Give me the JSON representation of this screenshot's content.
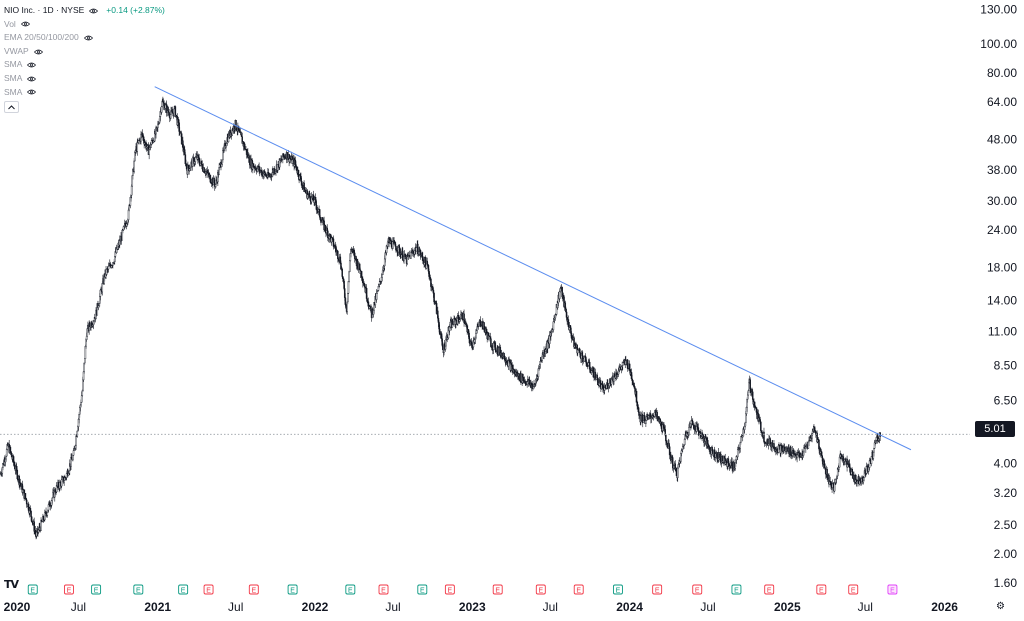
{
  "header": {
    "symbol": "NIO Inc. · 1D · NYSE",
    "change": "+0.14 (+2.87%)",
    "indicators": [
      "Vol",
      "EMA 20/50/100/200",
      "VWAP",
      "SMA",
      "SMA",
      "SMA"
    ]
  },
  "price_badge": "5.01",
  "colors": {
    "candle": "#131722",
    "trendline": "#5b8def",
    "earnings_green": "#089981",
    "earnings_red": "#f23645",
    "earnings_upcoming": "#e040fb",
    "badge_bg": "#131722",
    "change_text": "#089981"
  },
  "icons": {
    "logo": "tradingview-logo-icon",
    "settings": "settings-gear-icon",
    "visibility": "eye-icon"
  },
  "chart_data": {
    "type": "candlestick",
    "scale": "log",
    "grid": false,
    "x_range": [
      "2020-01-01",
      "2026-03-01"
    ],
    "y_range": [
      1.45,
      140
    ],
    "y_ticks": [
      1.6,
      2.0,
      2.5,
      3.2,
      4.0,
      5.01,
      6.5,
      8.5,
      11.0,
      14.0,
      18.0,
      24.0,
      30.0,
      38.0,
      48.0,
      64.0,
      80.0,
      100.0,
      130.0
    ],
    "y_tick_labels": [
      "1.60",
      "2.00",
      "2.50",
      "3.20",
      "4.00",
      "5.01",
      "6.50",
      "8.50",
      "11.00",
      "14.00",
      "18.00",
      "24.00",
      "30.00",
      "38.00",
      "48.00",
      "64.00",
      "80.00",
      "100.00",
      "130.00"
    ],
    "x_ticks": [
      {
        "date": "2020-01-01",
        "label": "2020",
        "bold": true
      },
      {
        "date": "2020-07-01",
        "label": "Jul",
        "bold": false
      },
      {
        "date": "2021-01-01",
        "label": "2021",
        "bold": true
      },
      {
        "date": "2021-07-01",
        "label": "Jul",
        "bold": false
      },
      {
        "date": "2022-01-01",
        "label": "2022",
        "bold": true
      },
      {
        "date": "2022-07-01",
        "label": "Jul",
        "bold": false
      },
      {
        "date": "2023-01-01",
        "label": "2023",
        "bold": true
      },
      {
        "date": "2023-07-01",
        "label": "Jul",
        "bold": false
      },
      {
        "date": "2024-01-01",
        "label": "2024",
        "bold": true
      },
      {
        "date": "2024-07-01",
        "label": "Jul",
        "bold": false
      },
      {
        "date": "2025-01-01",
        "label": "2025",
        "bold": true
      },
      {
        "date": "2025-07-01",
        "label": "Jul",
        "bold": false
      },
      {
        "date": "2026-01-01",
        "label": "2026",
        "bold": true
      }
    ],
    "last_price": 5.01,
    "trendline": {
      "start": {
        "date": "2020-12-25",
        "value": 72
      },
      "end": {
        "date": "2025-10-15",
        "value": 4.45
      }
    },
    "price_path": [
      [
        "2020-01-02",
        3.7
      ],
      [
        "2020-01-20",
        4.6
      ],
      [
        "2020-02-15",
        3.5
      ],
      [
        "2020-03-10",
        2.8
      ],
      [
        "2020-03-25",
        2.3
      ],
      [
        "2020-04-15",
        2.7
      ],
      [
        "2020-05-10",
        3.3
      ],
      [
        "2020-06-01",
        3.6
      ],
      [
        "2020-06-20",
        4.3
      ],
      [
        "2020-07-10",
        7.0
      ],
      [
        "2020-07-20",
        11.0
      ],
      [
        "2020-08-10",
        12.5
      ],
      [
        "2020-08-31",
        17.0
      ],
      [
        "2020-09-20",
        19.0
      ],
      [
        "2020-10-10",
        23.0
      ],
      [
        "2020-10-25",
        27.0
      ],
      [
        "2020-11-10",
        44.0
      ],
      [
        "2020-11-25",
        50.0
      ],
      [
        "2020-12-10",
        44.0
      ],
      [
        "2020-12-31",
        52.0
      ],
      [
        "2021-01-11",
        64.0
      ],
      [
        "2021-01-31",
        58.0
      ],
      [
        "2021-02-10",
        60.0
      ],
      [
        "2021-02-28",
        46.0
      ],
      [
        "2021-03-10",
        38.0
      ],
      [
        "2021-04-01",
        42.0
      ],
      [
        "2021-05-01",
        36.0
      ],
      [
        "2021-05-15",
        34.0
      ],
      [
        "2021-06-10",
        48.0
      ],
      [
        "2021-06-30",
        54.0
      ],
      [
        "2021-07-15",
        48.0
      ],
      [
        "2021-08-05",
        40.0
      ],
      [
        "2021-08-25",
        38.0
      ],
      [
        "2021-09-15",
        36.0
      ],
      [
        "2021-10-10",
        40.0
      ],
      [
        "2021-10-25",
        43.0
      ],
      [
        "2021-11-15",
        40.0
      ],
      [
        "2021-12-10",
        32.0
      ],
      [
        "2021-12-31",
        30.0
      ],
      [
        "2022-01-20",
        25.0
      ],
      [
        "2022-02-10",
        22.0
      ],
      [
        "2022-03-01",
        19.0
      ],
      [
        "2022-03-15",
        13.0
      ],
      [
        "2022-03-25",
        21.0
      ],
      [
        "2022-04-20",
        17.0
      ],
      [
        "2022-05-12",
        12.5
      ],
      [
        "2022-06-01",
        16.0
      ],
      [
        "2022-06-20",
        22.0
      ],
      [
        "2022-07-10",
        21.0
      ],
      [
        "2022-08-01",
        19.0
      ],
      [
        "2022-08-25",
        21.0
      ],
      [
        "2022-09-20",
        18.0
      ],
      [
        "2022-10-10",
        13.0
      ],
      [
        "2022-10-25",
        9.5
      ],
      [
        "2022-11-10",
        11.5
      ],
      [
        "2022-12-10",
        12.5
      ],
      [
        "2022-12-30",
        9.8
      ],
      [
        "2023-01-20",
        12.0
      ],
      [
        "2023-02-15",
        10.0
      ],
      [
        "2023-03-15",
        9.2
      ],
      [
        "2023-04-10",
        8.0
      ],
      [
        "2023-05-01",
        7.6
      ],
      [
        "2023-05-25",
        7.2
      ],
      [
        "2023-06-10",
        9.0
      ],
      [
        "2023-07-01",
        10.5
      ],
      [
        "2023-07-25",
        15.5
      ],
      [
        "2023-08-10",
        12.0
      ],
      [
        "2023-08-25",
        10.0
      ],
      [
        "2023-09-15",
        9.0
      ],
      [
        "2023-10-10",
        8.0
      ],
      [
        "2023-11-01",
        7.0
      ],
      [
        "2023-11-25",
        7.8
      ],
      [
        "2023-12-25",
        8.8
      ],
      [
        "2024-01-10",
        7.5
      ],
      [
        "2024-01-25",
        5.7
      ],
      [
        "2024-02-10",
        5.6
      ],
      [
        "2024-02-28",
        5.9
      ],
      [
        "2024-03-20",
        5.2
      ],
      [
        "2024-04-10",
        4.0
      ],
      [
        "2024-04-20",
        3.7
      ],
      [
        "2024-05-10",
        5.0
      ],
      [
        "2024-05-25",
        5.5
      ],
      [
        "2024-06-15",
        5.0
      ],
      [
        "2024-07-10",
        4.4
      ],
      [
        "2024-08-05",
        4.1
      ],
      [
        "2024-09-01",
        3.9
      ],
      [
        "2024-09-25",
        5.5
      ],
      [
        "2024-10-05",
        7.5
      ],
      [
        "2024-10-20",
        6.0
      ],
      [
        "2024-11-10",
        4.8
      ],
      [
        "2024-12-10",
        4.5
      ],
      [
        "2025-01-10",
        4.4
      ],
      [
        "2025-01-31",
        4.2
      ],
      [
        "2025-02-20",
        4.7
      ],
      [
        "2025-03-05",
        5.3
      ],
      [
        "2025-03-20",
        4.3
      ],
      [
        "2025-04-08",
        3.5
      ],
      [
        "2025-04-20",
        3.3
      ],
      [
        "2025-05-05",
        4.3
      ],
      [
        "2025-05-20",
        4.0
      ],
      [
        "2025-06-10",
        3.5
      ],
      [
        "2025-06-25",
        3.6
      ],
      [
        "2025-07-15",
        4.1
      ],
      [
        "2025-07-25",
        4.8
      ],
      [
        "2025-08-05",
        5.01
      ]
    ],
    "earnings": [
      {
        "date": "2020-03-17",
        "color": "green",
        "label": "E"
      },
      {
        "date": "2020-06-09",
        "color": "red",
        "label": "E"
      },
      {
        "date": "2020-08-11",
        "color": "green",
        "label": "E"
      },
      {
        "date": "2020-11-17",
        "color": "green",
        "label": "E"
      },
      {
        "date": "2021-03-01",
        "color": "green",
        "label": "E"
      },
      {
        "date": "2021-04-29",
        "color": "red",
        "label": "E"
      },
      {
        "date": "2021-08-12",
        "color": "red",
        "label": "E"
      },
      {
        "date": "2021-11-10",
        "color": "green",
        "label": "E"
      },
      {
        "date": "2022-03-24",
        "color": "green",
        "label": "E"
      },
      {
        "date": "2022-06-09",
        "color": "red",
        "label": "E"
      },
      {
        "date": "2022-09-07",
        "color": "green",
        "label": "E"
      },
      {
        "date": "2022-11-10",
        "color": "red",
        "label": "E"
      },
      {
        "date": "2023-03-01",
        "color": "red",
        "label": "E"
      },
      {
        "date": "2023-06-09",
        "color": "red",
        "label": "E"
      },
      {
        "date": "2023-09-05",
        "color": "red",
        "label": "E"
      },
      {
        "date": "2023-12-05",
        "color": "green",
        "label": "E"
      },
      {
        "date": "2024-03-05",
        "color": "red",
        "label": "E"
      },
      {
        "date": "2024-06-06",
        "color": "red",
        "label": "E"
      },
      {
        "date": "2024-09-05",
        "color": "green",
        "label": "E"
      },
      {
        "date": "2024-11-20",
        "color": "red",
        "label": "E"
      },
      {
        "date": "2025-03-21",
        "color": "red",
        "label": "E"
      },
      {
        "date": "2025-06-03",
        "color": "red",
        "label": "E"
      },
      {
        "date": "2025-09-02",
        "color": "upcoming",
        "label": "E"
      }
    ]
  }
}
